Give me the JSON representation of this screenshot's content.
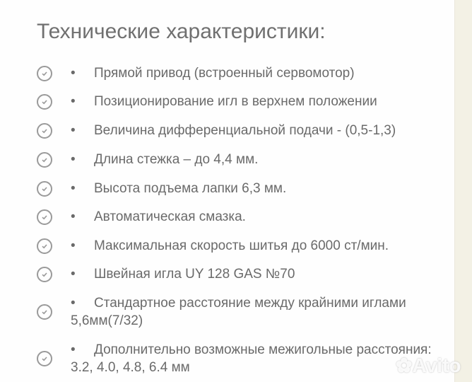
{
  "title": "Технические характеристики:",
  "items": [
    {
      "text": "Прямой привод (встроенный сервомотор)"
    },
    {
      "text": "Позиционирование игл в верхнем положении"
    },
    {
      "text": "Величина дифференциальной подачи - (0,5-1,3)"
    },
    {
      "text": "Длина стежка – до 4,4 мм."
    },
    {
      "text": "Высота подъема лапки 6,3 мм."
    },
    {
      "text": "Автоматическая смазка."
    },
    {
      "text": "Максимальная скорость шитья до 6000 ст/мин."
    },
    {
      "text": "Швейная игла UY 128 GAS №70"
    },
    {
      "text": "Стандартное расстояние между крайними иглами 5,6мм(7/32)"
    },
    {
      "text": "Дополнительно возможные межигольные расстояния: 3.2, 4.0, 4.8, 6.4 мм"
    }
  ],
  "bullet": "•",
  "icon": "check-circle-icon",
  "watermark": "Avito"
}
